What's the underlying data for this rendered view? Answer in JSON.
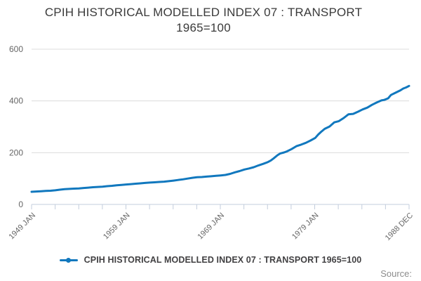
{
  "title": {
    "line1": "CPIH HISTORICAL MODELLED INDEX 07 : TRANSPORT",
    "line2": "1965=100"
  },
  "legend": {
    "label": "CPIH HISTORICAL MODELLED INDEX 07 : TRANSPORT 1965=100"
  },
  "footer": {
    "source_label": "Source:"
  },
  "colors": {
    "line": "#1178be",
    "grid": "#dcdcdc",
    "axis": "#c3cddc",
    "tick_label": "#666666",
    "title_text": "#3a3a3a",
    "legend_text": "#414042",
    "source_text": "#8c8c8c"
  },
  "chart_data": {
    "type": "line",
    "title": "CPIH HISTORICAL MODELLED INDEX 07 : TRANSPORT 1965=100",
    "xlabel": "",
    "ylabel": "",
    "ylim": [
      0,
      600
    ],
    "yticks": [
      0,
      200,
      400,
      600
    ],
    "x_range_years": [
      1949.0,
      1988.9167
    ],
    "x_tick_count": 17,
    "x_tick_labels": [
      {
        "tick_index": 0,
        "label": "1949 JAN"
      },
      {
        "tick_index": 4,
        "label": "1959 JAN"
      },
      {
        "tick_index": 8,
        "label": "1969 JAN"
      },
      {
        "tick_index": 12,
        "label": "1979 JAN"
      },
      {
        "tick_index": 16,
        "label": "1988 DEC"
      }
    ],
    "grid": "horizontal-only",
    "legend_position": "bottom",
    "series": [
      {
        "name": "CPIH HISTORICAL MODELLED INDEX 07 : TRANSPORT 1965=100",
        "color": "#1178be",
        "points": [
          [
            1949.0,
            49
          ],
          [
            1949.5,
            50
          ],
          [
            1950.0,
            51
          ],
          [
            1950.5,
            52
          ],
          [
            1951.0,
            53
          ],
          [
            1951.5,
            54.5
          ],
          [
            1952.0,
            57
          ],
          [
            1952.5,
            59
          ],
          [
            1953.0,
            60
          ],
          [
            1953.5,
            61
          ],
          [
            1954.0,
            62
          ],
          [
            1954.5,
            63.5
          ],
          [
            1955.0,
            65
          ],
          [
            1955.5,
            66.5
          ],
          [
            1956.0,
            67.5
          ],
          [
            1956.5,
            68.5
          ],
          [
            1957.0,
            70.5
          ],
          [
            1957.5,
            72
          ],
          [
            1958.0,
            74
          ],
          [
            1958.5,
            75.5
          ],
          [
            1959.0,
            77
          ],
          [
            1959.5,
            78.5
          ],
          [
            1960.0,
            80
          ],
          [
            1960.5,
            81.5
          ],
          [
            1961.0,
            83
          ],
          [
            1961.5,
            84.5
          ],
          [
            1962.0,
            85.5
          ],
          [
            1962.5,
            87
          ],
          [
            1963.0,
            88
          ],
          [
            1963.5,
            90
          ],
          [
            1964.0,
            92
          ],
          [
            1964.5,
            94.5
          ],
          [
            1965.0,
            97
          ],
          [
            1965.5,
            100
          ],
          [
            1966.0,
            103
          ],
          [
            1966.5,
            105
          ],
          [
            1967.0,
            106
          ],
          [
            1967.5,
            107.5
          ],
          [
            1968.0,
            109
          ],
          [
            1968.5,
            110.5
          ],
          [
            1969.0,
            112
          ],
          [
            1969.5,
            114
          ],
          [
            1970.0,
            118
          ],
          [
            1970.5,
            124
          ],
          [
            1971.0,
            129
          ],
          [
            1971.5,
            135
          ],
          [
            1972.0,
            139
          ],
          [
            1972.5,
            144
          ],
          [
            1973.0,
            151
          ],
          [
            1973.5,
            157
          ],
          [
            1974.0,
            164
          ],
          [
            1974.3,
            170
          ],
          [
            1974.6,
            178
          ],
          [
            1975.0,
            190
          ],
          [
            1975.3,
            197
          ],
          [
            1975.7,
            201
          ],
          [
            1976.0,
            205
          ],
          [
            1976.5,
            214
          ],
          [
            1977.0,
            225
          ],
          [
            1977.5,
            231
          ],
          [
            1978.0,
            238
          ],
          [
            1978.5,
            247
          ],
          [
            1979.0,
            257
          ],
          [
            1979.3,
            270
          ],
          [
            1979.6,
            280
          ],
          [
            1980.0,
            292
          ],
          [
            1980.5,
            301
          ],
          [
            1981.0,
            317
          ],
          [
            1981.5,
            322
          ],
          [
            1982.0,
            334
          ],
          [
            1982.5,
            348
          ],
          [
            1983.0,
            350
          ],
          [
            1983.5,
            358
          ],
          [
            1984.0,
            367
          ],
          [
            1984.5,
            374
          ],
          [
            1985.0,
            385
          ],
          [
            1985.5,
            394
          ],
          [
            1986.0,
            402
          ],
          [
            1986.3,
            404
          ],
          [
            1986.7,
            410
          ],
          [
            1987.0,
            423
          ],
          [
            1987.5,
            432
          ],
          [
            1988.0,
            441
          ],
          [
            1988.3,
            448
          ],
          [
            1988.6,
            452
          ],
          [
            1988.92,
            458
          ]
        ]
      }
    ]
  }
}
